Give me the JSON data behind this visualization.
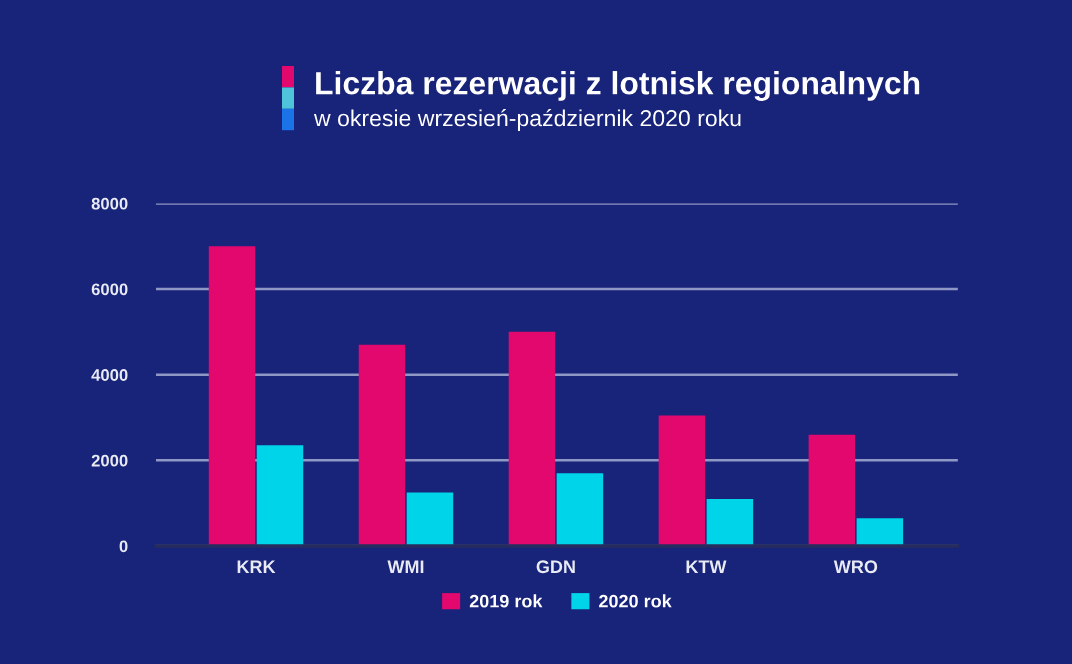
{
  "chart_data": {
    "type": "bar",
    "title": "Liczba rezerwacji z lotnisk regionalnych",
    "subtitle": "w okresie wrzesień-październik 2020 roku",
    "categories": [
      "KRK",
      "WMI",
      "GDN",
      "KTW",
      "WRO"
    ],
    "series": [
      {
        "name": "2019 rok",
        "color": "#e3086e",
        "values": [
          7000,
          4700,
          5000,
          3050,
          2600
        ]
      },
      {
        "name": "2020 rok",
        "color": "#00d4e8",
        "values": [
          2350,
          1250,
          1700,
          1100,
          650
        ]
      }
    ],
    "ylim": [
      0,
      8000
    ],
    "yticks": [
      0,
      2000,
      4000,
      6000,
      8000
    ],
    "grid": "y",
    "legend": "bottom"
  }
}
